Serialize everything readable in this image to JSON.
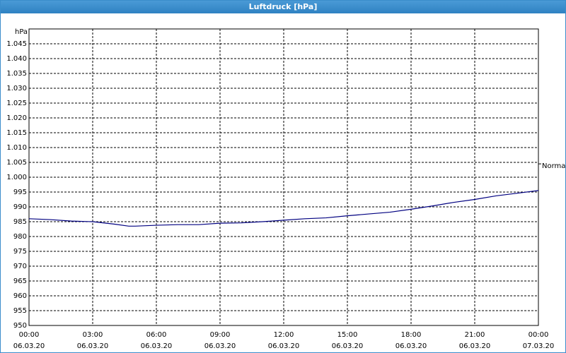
{
  "chart_data": {
    "type": "line",
    "title": "Luftdruck [hPa]",
    "y_unit": "hPa",
    "x": [
      0,
      1,
      2,
      3,
      4,
      4.7,
      5,
      6,
      7,
      8,
      9,
      10,
      11,
      12,
      13,
      14,
      15,
      16,
      17,
      18,
      19,
      20,
      21,
      22,
      23,
      24
    ],
    "series": [
      {
        "name": "Luftdruck",
        "color": "#000080",
        "values": [
          986,
          985.7,
          985.2,
          985,
          984.2,
          983.5,
          983.5,
          983.8,
          984,
          984,
          984.5,
          984.6,
          985,
          985.5,
          986,
          986.3,
          987,
          987.6,
          988.2,
          989.2,
          990.3,
          991.5,
          992.5,
          993.7,
          994.6,
          995.5
        ]
      }
    ],
    "xlim": [
      0,
      24
    ],
    "xticks": [
      {
        "value": 0,
        "label": "00:00"
      },
      {
        "value": 3,
        "label": "03:00"
      },
      {
        "value": 6,
        "label": "06:00"
      },
      {
        "value": 9,
        "label": "09:00"
      },
      {
        "value": 12,
        "label": "12:00"
      },
      {
        "value": 15,
        "label": "15:00"
      },
      {
        "value": 18,
        "label": "18:00"
      },
      {
        "value": 21,
        "label": "21:00"
      },
      {
        "value": 24,
        "label": "00:00"
      }
    ],
    "xtick_dates": [
      "06.03.20",
      "06.03.20",
      "06.03.20",
      "06.03.20",
      "06.03.20",
      "06.03.20",
      "06.03.20",
      "06.03.20",
      "07.03.20"
    ],
    "ylim": [
      950,
      1050
    ],
    "yticks": [
      {
        "value": 950,
        "label": "950"
      },
      {
        "value": 955,
        "label": "955"
      },
      {
        "value": 960,
        "label": "960"
      },
      {
        "value": 965,
        "label": "965"
      },
      {
        "value": 970,
        "label": "970"
      },
      {
        "value": 975,
        "label": "975"
      },
      {
        "value": 980,
        "label": "980"
      },
      {
        "value": 985,
        "label": "985"
      },
      {
        "value": 990,
        "label": "990"
      },
      {
        "value": 995,
        "label": "995"
      },
      {
        "value": 1000,
        "label": "1.000"
      },
      {
        "value": 1005,
        "label": "1.005"
      },
      {
        "value": 1010,
        "label": "1.010"
      },
      {
        "value": 1015,
        "label": "1.015"
      },
      {
        "value": 1020,
        "label": "1.020"
      },
      {
        "value": 1025,
        "label": "1.025"
      },
      {
        "value": 1030,
        "label": "1.030"
      },
      {
        "value": 1035,
        "label": "1.035"
      },
      {
        "value": 1040,
        "label": "1.040"
      },
      {
        "value": 1045,
        "label": "1.045"
      }
    ],
    "grid": true,
    "reference": {
      "label": "Normal",
      "value": 1004.5
    }
  }
}
